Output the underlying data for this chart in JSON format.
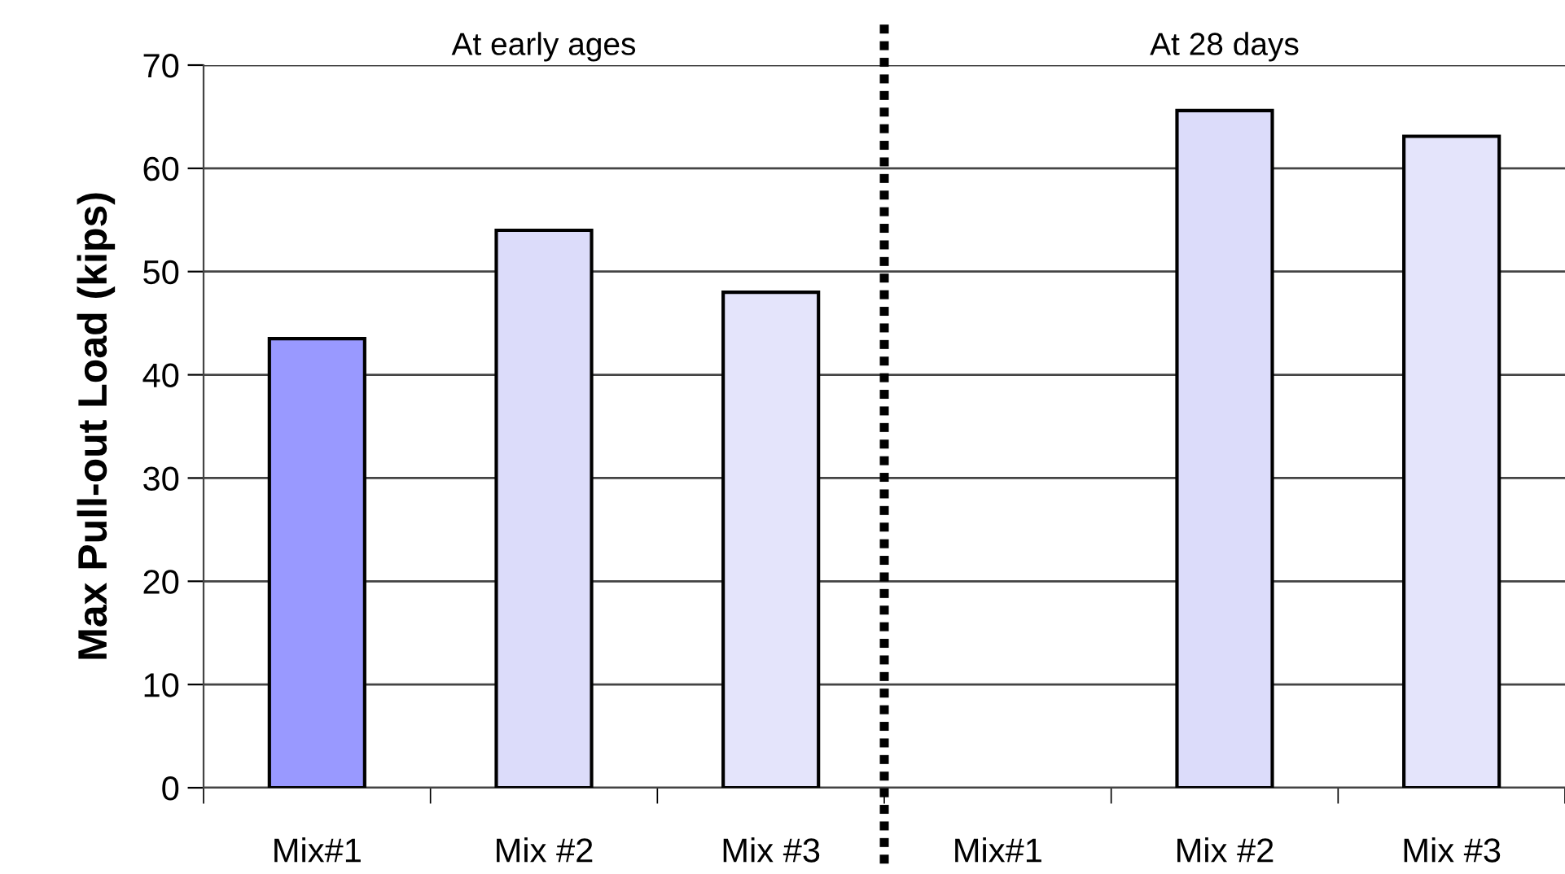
{
  "chart_data": {
    "type": "bar",
    "ylabel": "Max Pull-out Load (kips)",
    "categories": [
      "Mix#1",
      "Mix #2",
      "Mix #3",
      "Mix#1",
      "Mix #2",
      "Mix #3"
    ],
    "values": [
      43.5,
      54,
      48,
      null,
      65.6,
      63.1
    ],
    "colors": [
      "#9999ff",
      "#dcdcfa",
      "#e4e4fb",
      "#dcdcfa",
      "#dcdcfa",
      "#e4e4fb"
    ],
    "ylim": [
      0,
      70
    ],
    "yticks": [
      0,
      10,
      20,
      30,
      40,
      50,
      60,
      70
    ],
    "grid": "y",
    "annotations": [
      "At early ages",
      "At 28 days"
    ]
  }
}
